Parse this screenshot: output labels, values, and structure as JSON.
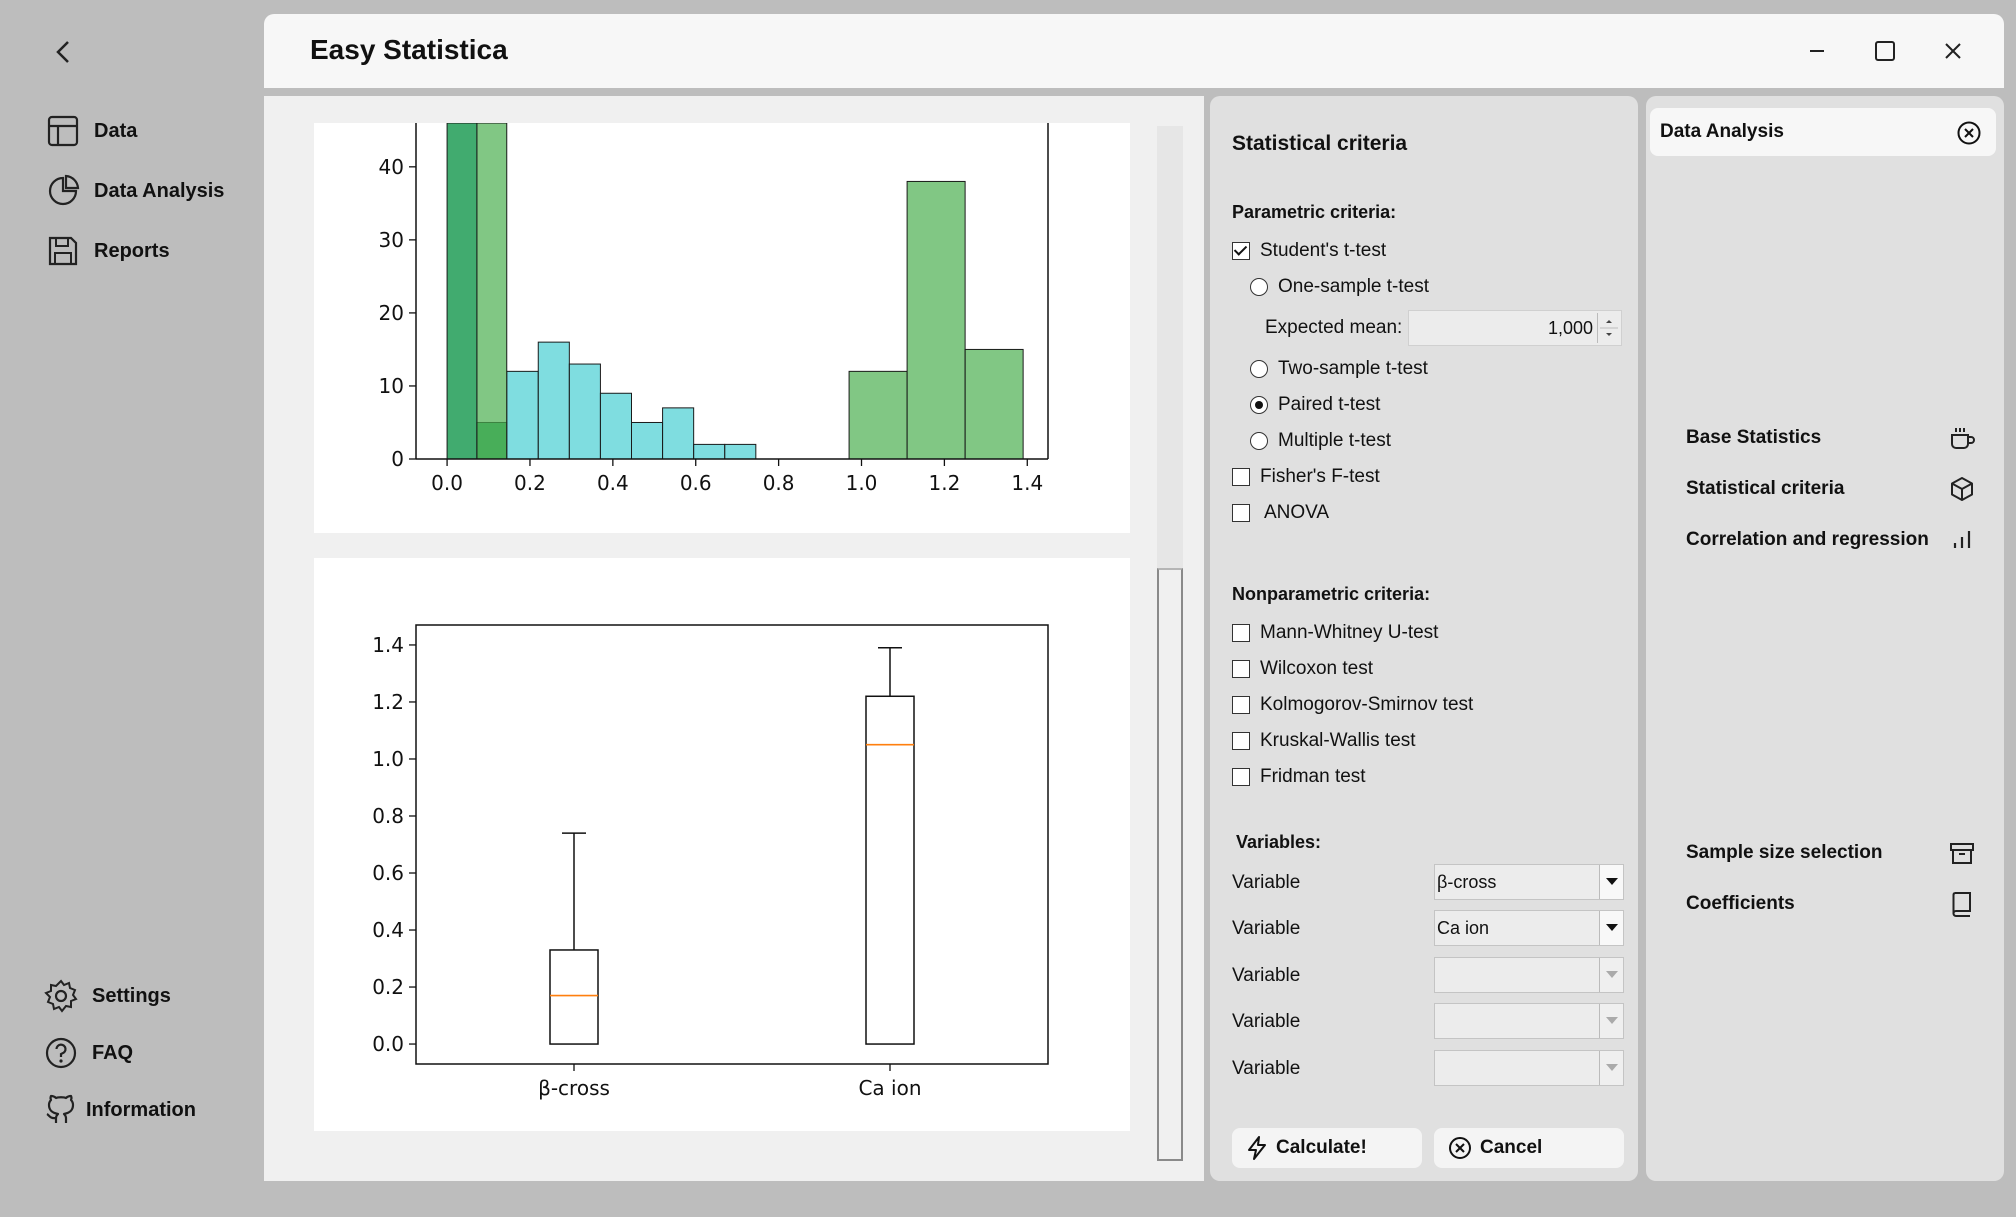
{
  "nav": {
    "back_icon": "chevron-left-icon",
    "items": [
      {
        "label": "Data",
        "icon": "table-icon"
      },
      {
        "label": "Data Analysis",
        "icon": "pie-chart-icon"
      },
      {
        "label": "Reports",
        "icon": "save-icon"
      }
    ],
    "bottom_items": [
      {
        "label": "Settings",
        "icon": "gear-icon"
      },
      {
        "label": "FAQ",
        "icon": "help-circle-icon"
      },
      {
        "label": "Information",
        "icon": "github-icon"
      }
    ]
  },
  "window": {
    "title": "Easy Statistica",
    "controls": [
      "minimize-icon",
      "maximize-icon",
      "close-icon"
    ]
  },
  "criteria": {
    "title": "Statistical criteria",
    "parametric_heading": "Parametric criteria:",
    "students_t": {
      "label": "Student's t-test",
      "checked": true
    },
    "one_sample": {
      "label": "One-sample t-test",
      "checked": false
    },
    "expected_mean_label": "Expected mean:",
    "expected_mean_value": "1,000",
    "two_sample": {
      "label": "Two-sample t-test",
      "checked": false
    },
    "paired": {
      "label": "Paired t-test",
      "checked": true
    },
    "multiple": {
      "label": "Multiple t-test",
      "checked": false
    },
    "fisher": {
      "label": "Fisher's F-test",
      "checked": false
    },
    "anova": {
      "label": "ANOVA",
      "checked": false
    },
    "nonparametric_heading": "Nonparametric criteria:",
    "nonparametric": [
      {
        "label": "Mann-Whitney U-test",
        "checked": false
      },
      {
        "label": "Wilcoxon test",
        "checked": false
      },
      {
        "label": "Kolmogorov-Smirnov test",
        "checked": false
      },
      {
        "label": "Kruskal-Wallis test",
        "checked": false
      },
      {
        "label": "Fridman test",
        "checked": false
      }
    ],
    "variables_heading": "Variables:",
    "variables": [
      {
        "label": "Variable",
        "value": "β-cross",
        "enabled": true
      },
      {
        "label": "Variable",
        "value": "Ca ion",
        "enabled": true
      },
      {
        "label": "Variable",
        "value": "",
        "enabled": false
      },
      {
        "label": "Variable",
        "value": "",
        "enabled": false
      },
      {
        "label": "Variable",
        "value": "",
        "enabled": false
      }
    ],
    "calculate_label": "Calculate!",
    "cancel_label": "Cancel"
  },
  "analysis": {
    "title": "Data Analysis",
    "menu": [
      {
        "label": "Base Statistics",
        "icon": "cup-icon"
      },
      {
        "label": "Statistical criteria",
        "icon": "cube-icon"
      },
      {
        "label": "Correlation and regression",
        "icon": "bar-chart-icon"
      },
      {
        "label": "Sample size selection",
        "icon": "archive-icon"
      },
      {
        "label": "Coefficients",
        "icon": "book-icon"
      }
    ]
  },
  "chart_data": [
    {
      "type": "bar",
      "subtype": "histogram",
      "x_ticks": [
        "0.0",
        "0.2",
        "0.4",
        "0.6",
        "0.8",
        "1.0",
        "1.2",
        "1.4"
      ],
      "y_ticks": [
        "0",
        "10",
        "20",
        "30",
        "40"
      ],
      "xlim": [
        -0.075,
        1.45
      ],
      "ylim": [
        0,
        46
      ],
      "series": [
        {
          "color": "#2ca25f",
          "alpha_opacity": 0.9,
          "bins": [
            {
              "x0": 0.0,
              "x1": 0.072,
              "count": 46
            },
            {
              "x0": 0.072,
              "x1": 0.144,
              "count": 5
            }
          ]
        },
        {
          "color": "#4dd0d4",
          "alpha_opacity": 0.72,
          "bins": [
            {
              "x0": 0.144,
              "x1": 0.22,
              "count": 12
            },
            {
              "x0": 0.22,
              "x1": 0.295,
              "count": 16
            },
            {
              "x0": 0.295,
              "x1": 0.37,
              "count": 13
            },
            {
              "x0": 0.37,
              "x1": 0.445,
              "count": 9
            },
            {
              "x0": 0.445,
              "x1": 0.52,
              "count": 5
            },
            {
              "x0": 0.52,
              "x1": 0.595,
              "count": 7
            },
            {
              "x0": 0.595,
              "x1": 0.67,
              "count": 2
            },
            {
              "x0": 0.67,
              "x1": 0.745,
              "count": 2
            }
          ]
        },
        {
          "color": "#4caf50",
          "alpha_opacity": 0.7,
          "bins": [
            {
              "x0": 0.072,
              "x1": 0.144,
              "count": 46
            },
            {
              "x0": 0.97,
              "x1": 1.11,
              "count": 12
            },
            {
              "x0": 1.11,
              "x1": 1.25,
              "count": 38
            },
            {
              "x0": 1.25,
              "x1": 1.39,
              "count": 15
            }
          ]
        }
      ]
    },
    {
      "type": "boxplot",
      "categories": [
        "β-cross",
        "Ca ion"
      ],
      "y_ticks": [
        "0.0",
        "0.2",
        "0.4",
        "0.6",
        "0.8",
        "1.0",
        "1.2",
        "1.4"
      ],
      "ylim": [
        -0.07,
        1.47
      ],
      "boxes": [
        {
          "name": "β-cross",
          "min": 0.0,
          "q1": 0.0,
          "median": 0.17,
          "q3": 0.33,
          "max": 0.74
        },
        {
          "name": "Ca ion",
          "min": 0.0,
          "q1": 0.0,
          "median": 1.05,
          "q3": 1.22,
          "max": 1.39
        }
      ],
      "median_color": "#ff7f0e"
    }
  ]
}
